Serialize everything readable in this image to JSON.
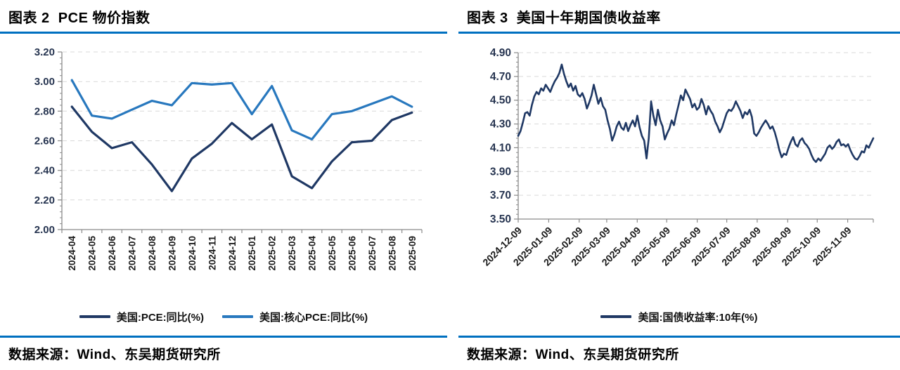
{
  "theme": {
    "accent_rule_color": "#0070C0",
    "grid_color": "#D9D9D9",
    "axis_color": "#8A8A8A",
    "ytick_label_color": "#263450",
    "xtick_label_color": "#1A1A1A"
  },
  "figures": [
    {
      "title": "图表 2  PCE 物价指数",
      "source_label": "数据来源：Wind、东吴期货研究所"
    },
    {
      "title": "图表 3  美国十年期国债收益率",
      "source_label": "数据来源：Wind、东吴期货研究所"
    }
  ],
  "chart_data": [
    {
      "type": "line",
      "title": "PCE 物价指数",
      "categories": [
        "2024-04",
        "2024-05",
        "2024-06",
        "2024-07",
        "2024-08",
        "2024-09",
        "2024-10",
        "2024-11",
        "2024-12",
        "2025-01",
        "2025-02",
        "2025-03",
        "2025-04",
        "2025-05",
        "2025-06",
        "2025-07",
        "2025-08",
        "2025-09"
      ],
      "series": [
        {
          "name": "美国:PCE:同比(%)",
          "color": "#1F3864",
          "values": [
            2.83,
            2.66,
            2.55,
            2.59,
            2.44,
            2.26,
            2.48,
            2.58,
            2.72,
            2.61,
            2.71,
            2.36,
            2.28,
            2.46,
            2.59,
            2.6,
            2.74,
            2.79
          ]
        },
        {
          "name": "美国:核心PCE:同比(%)",
          "color": "#2878BE",
          "values": [
            3.01,
            2.77,
            2.75,
            2.81,
            2.87,
            2.84,
            2.99,
            2.98,
            2.99,
            2.78,
            2.97,
            2.67,
            2.61,
            2.78,
            2.8,
            2.85,
            2.9,
            2.83
          ]
        }
      ],
      "ylim": [
        2.0,
        3.2
      ],
      "ytick_step": 0.2,
      "y_decimals": 2,
      "grid": "horizontal-dashed",
      "legend_position": "bottom",
      "x_label_rotation": -90
    },
    {
      "type": "line",
      "title": "美国十年期国债收益率",
      "x_labels": [
        "2024-12-09",
        "2025-01-09",
        "2025-02-09",
        "2025-03-09",
        "2025-04-09",
        "2025-05-09",
        "2025-06-09",
        "2025-07-09",
        "2025-08-09",
        "2025-09-09",
        "2025-10-09",
        "2025-11-09"
      ],
      "x_start": "2024-12-09",
      "x_end": "2025-12-05",
      "series": [
        {
          "name": "美国:国债收益率:10年(%)",
          "color": "#1F3864",
          "values": [
            4.2,
            4.24,
            4.31,
            4.39,
            4.4,
            4.37,
            4.46,
            4.53,
            4.57,
            4.55,
            4.6,
            4.58,
            4.63,
            4.6,
            4.57,
            4.62,
            4.66,
            4.69,
            4.73,
            4.8,
            4.72,
            4.66,
            4.61,
            4.64,
            4.58,
            4.62,
            4.55,
            4.53,
            4.56,
            4.51,
            4.43,
            4.48,
            4.54,
            4.63,
            4.55,
            4.47,
            4.52,
            4.45,
            4.42,
            4.33,
            4.26,
            4.16,
            4.21,
            4.28,
            4.32,
            4.27,
            4.25,
            4.31,
            4.24,
            4.29,
            4.33,
            4.28,
            4.37,
            4.27,
            4.2,
            4.16,
            4.01,
            4.18,
            4.49,
            4.37,
            4.29,
            4.42,
            4.33,
            4.28,
            4.17,
            4.22,
            4.26,
            4.33,
            4.29,
            4.38,
            4.46,
            4.54,
            4.5,
            4.59,
            4.55,
            4.51,
            4.44,
            4.47,
            4.42,
            4.44,
            4.51,
            4.46,
            4.38,
            4.45,
            4.41,
            4.38,
            4.32,
            4.28,
            4.23,
            4.27,
            4.33,
            4.39,
            4.42,
            4.41,
            4.44,
            4.49,
            4.45,
            4.41,
            4.35,
            4.4,
            4.38,
            4.42,
            4.36,
            4.22,
            4.2,
            4.23,
            4.27,
            4.3,
            4.33,
            4.3,
            4.26,
            4.28,
            4.23,
            4.16,
            4.08,
            4.02,
            4.05,
            4.04,
            4.1,
            4.15,
            4.19,
            4.13,
            4.11,
            4.16,
            4.18,
            4.14,
            4.12,
            4.09,
            4.04,
            4.0,
            3.98,
            4.01,
            3.99,
            4.02,
            4.05,
            4.1,
            4.12,
            4.09,
            4.11,
            4.15,
            4.17,
            4.12,
            4.13,
            4.11,
            4.13,
            4.08,
            4.04,
            4.01,
            4.0,
            4.03,
            4.07,
            4.06,
            4.12,
            4.1,
            4.14,
            4.18
          ]
        }
      ],
      "ylim": [
        3.5,
        4.9
      ],
      "ytick_step": 0.2,
      "y_decimals": 2,
      "grid": "horizontal-dashed",
      "legend_position": "bottom",
      "x_label_rotation": -45
    }
  ]
}
